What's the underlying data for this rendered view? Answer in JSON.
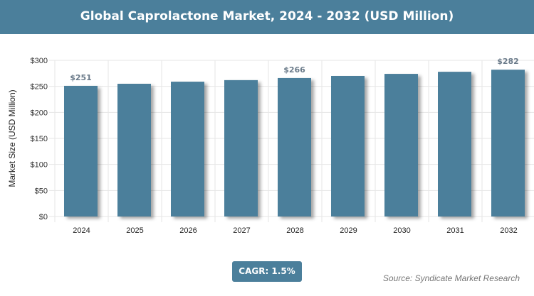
{
  "chart_data": {
    "type": "bar",
    "title": "Global Caprolactone Market, 2024 - 2032 (USD Million)",
    "ylabel": "Market Size (USD Million)",
    "xlabel": "",
    "categories": [
      "2024",
      "2025",
      "2026",
      "2027",
      "2028",
      "2029",
      "2030",
      "2031",
      "2032"
    ],
    "values": [
      251,
      255,
      259,
      262,
      266,
      270,
      274,
      278,
      282
    ],
    "data_labels": {
      "0": "$251",
      "4": "$266",
      "8": "$282"
    },
    "ylim": [
      0,
      300
    ],
    "yticks": [
      0,
      50,
      100,
      150,
      200,
      250,
      300
    ],
    "ytick_labels": [
      "$0",
      "$50",
      "$100",
      "$150",
      "$200",
      "$250",
      "$300"
    ],
    "grid": true,
    "bar_color": "#4b7f9b"
  },
  "cagr": "CAGR: 1.5%",
  "source": "Source: Syndicate Market Research"
}
